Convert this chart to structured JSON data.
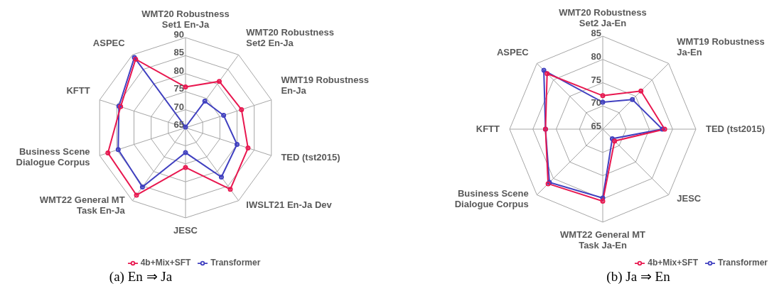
{
  "chart_data": [
    {
      "type": "radar",
      "title": "(a) En ⇒ Ja",
      "categories": [
        "WMT20 Robustness Set1 En-Ja",
        "WMT20 Robustness Set2 En-Ja",
        "WMT19 Robustness En-Ja",
        "TED (tst2015)",
        "IWSLT21 En-Ja Dev",
        "JESC",
        "WMT22 General MT Task En-Ja",
        "Business Scene Dialogue Corpus",
        "KFTT",
        "ASPEC"
      ],
      "ylim": [
        65,
        90
      ],
      "yticks": [
        65,
        70,
        75,
        80,
        85,
        90
      ],
      "grid": true,
      "legend": "bottom",
      "marker": "circle",
      "series": [
        {
          "name": "Transformer",
          "color": "#4040c0",
          "values": [
            65.2,
            74.1,
            76.1,
            80,
            81.9,
            71.9,
            85.3,
            84.6,
            84.4,
            89.1
          ]
        },
        {
          "name": "4b+Mix+SFT",
          "color": "#e8174f",
          "values": [
            76.3,
            80.9,
            81.3,
            83.2,
            86.1,
            76,
            88.1,
            87.6,
            83.9,
            88.5
          ]
        }
      ]
    },
    {
      "type": "radar",
      "title": "(b) Ja ⇒ En",
      "categories": [
        "WMT20 Robustness Set2 Ja-En",
        "WMT19 Robustness Ja-En",
        "TED (tst2015)",
        "JESC",
        "WMT22 General MT Task Ja-En",
        "Business Scene Dialogue Corpus",
        "KFTT",
        "ASPEC"
      ],
      "ylim": [
        65,
        85
      ],
      "yticks": [
        65,
        70,
        75,
        80,
        85
      ],
      "grid": true,
      "legend": "bottom right",
      "marker": "circle",
      "series": [
        {
          "name": "Transformer",
          "color": "#4040c0",
          "values": [
            70.8,
            74,
            77.8,
            67.9,
            79.8,
            81.2,
            77.3,
            82.9
          ]
        },
        {
          "name": "4b+Mix+SFT",
          "color": "#e8174f",
          "values": [
            72.2,
            76.6,
            78.3,
            68.6,
            80.5,
            81.6,
            77.3,
            81.9
          ]
        }
      ]
    }
  ]
}
